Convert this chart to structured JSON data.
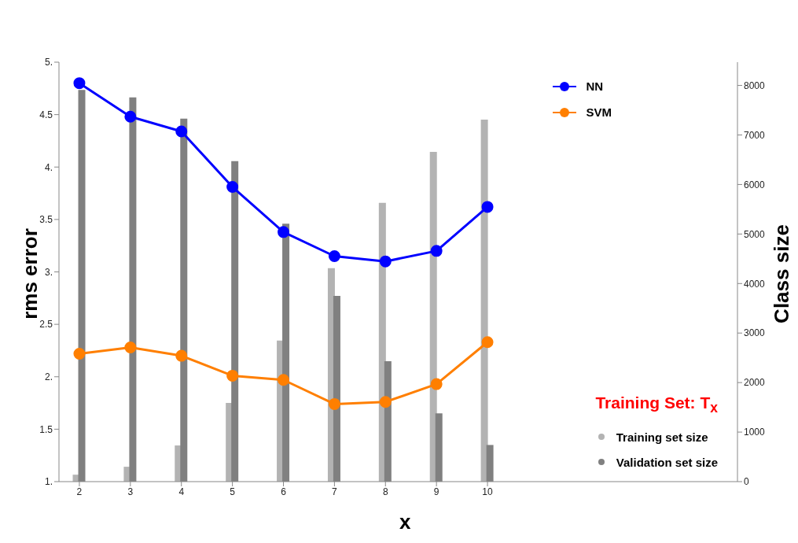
{
  "chart_data": {
    "type": "line",
    "xlabel": "x",
    "ylabel": "rms error",
    "y2label": "Class size",
    "legend_title": "Training Set:  T$_{x}$",
    "x": [
      2,
      3,
      4,
      5,
      6,
      7,
      8,
      9,
      10
    ],
    "series": [
      {
        "name": "Training set size",
        "type": "bar",
        "axis": "y2",
        "color": "#b3b3b3",
        "values": [
          140,
          300,
          730,
          1590,
          2850,
          4310,
          5630,
          6660,
          7310
        ]
      },
      {
        "name": "Validation set size",
        "type": "bar",
        "axis": "y2",
        "color": "#808080",
        "values": [
          7910,
          7760,
          7330,
          6470,
          5210,
          3750,
          2430,
          1380,
          740
        ]
      },
      {
        "name": "NN",
        "color": "#0000ff",
        "values": [
          4.8,
          4.48,
          4.34,
          3.81,
          3.38,
          3.15,
          3.1,
          3.2,
          3.62
        ]
      },
      {
        "name": "SVM",
        "color": "#ff7f00",
        "values": [
          2.22,
          2.28,
          2.2,
          2.01,
          1.97,
          1.74,
          1.76,
          1.93,
          2.33
        ]
      }
    ],
    "xlim": [
      1.6,
      14.9
    ],
    "xticks": [
      2,
      3,
      4,
      5,
      6,
      7,
      8,
      9,
      10
    ],
    "ylim": [
      1,
      5
    ],
    "yticks": [
      {
        "value": 1,
        "label": "1."
      },
      {
        "value": 1.5,
        "label": "1.5"
      },
      {
        "value": 2,
        "label": "2."
      },
      {
        "value": 2.5,
        "label": "2.5"
      },
      {
        "value": 3,
        "label": "3."
      },
      {
        "value": 3.5,
        "label": "3.5"
      },
      {
        "value": 4,
        "label": "4."
      },
      {
        "value": 4.5,
        "label": "4.5"
      },
      {
        "value": 5,
        "label": "5."
      }
    ],
    "y2lim": [
      0,
      8470
    ],
    "y2ticks": [
      0,
      1000,
      2000,
      3000,
      4000,
      5000,
      6000,
      7000,
      8000
    ],
    "grid": false,
    "legend": "right",
    "marker": "circle",
    "line_style": "solid"
  }
}
